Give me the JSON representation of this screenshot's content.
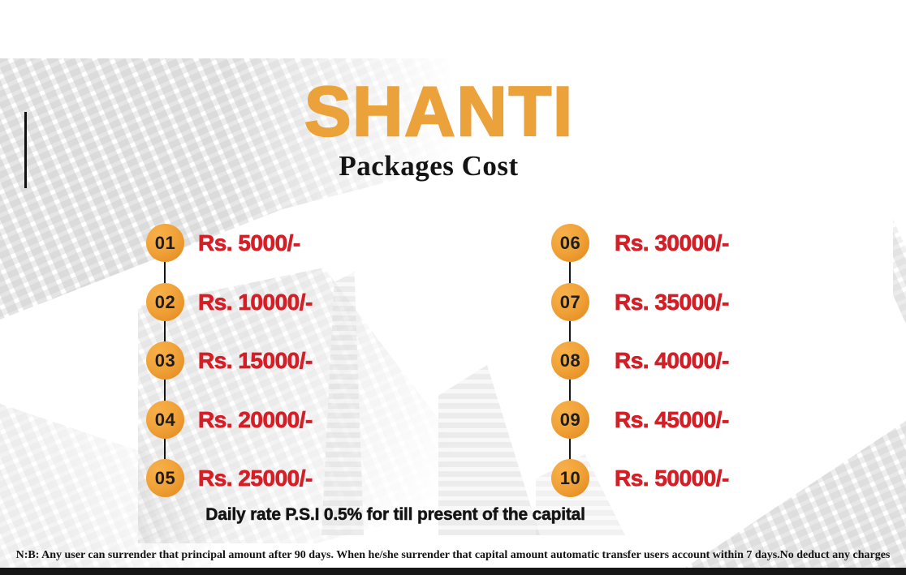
{
  "slide": {
    "title": "SHANTI",
    "subtitle": "Packages Cost",
    "daily_rate_note": "Daily rate P.S.I 0.5% for till present of the capital",
    "footer_note": "N:B: Any user can surrender that principal amount after 90 days. When he/she surrender that capital amount automatic transfer users account within 7 days.No deduct any charges"
  },
  "packages": {
    "left": [
      {
        "num": "01",
        "price": "Rs. 5000/-"
      },
      {
        "num": "02",
        "price": "Rs. 10000/-"
      },
      {
        "num": "03",
        "price": "Rs. 15000/-"
      },
      {
        "num": "04",
        "price": "Rs. 20000/-"
      },
      {
        "num": "05",
        "price": "Rs. 25000/-"
      }
    ],
    "right": [
      {
        "num": "06",
        "price": "Rs. 30000/-"
      },
      {
        "num": "07",
        "price": "Rs. 35000/-"
      },
      {
        "num": "08",
        "price": "Rs. 40000/-"
      },
      {
        "num": "09",
        "price": "Rs. 45000/-"
      },
      {
        "num": "10",
        "price": "Rs. 50000/-"
      }
    ]
  },
  "colors": {
    "title_orange": "#EBA23A",
    "price_red": "#D41F27",
    "number_ink": "#1C1C1C",
    "text_ink": "#141414",
    "circle_light": "#F8B04A",
    "circle_mid": "#F0A237",
    "circle_dark": "#E0861F",
    "bar_black": "#161616"
  }
}
